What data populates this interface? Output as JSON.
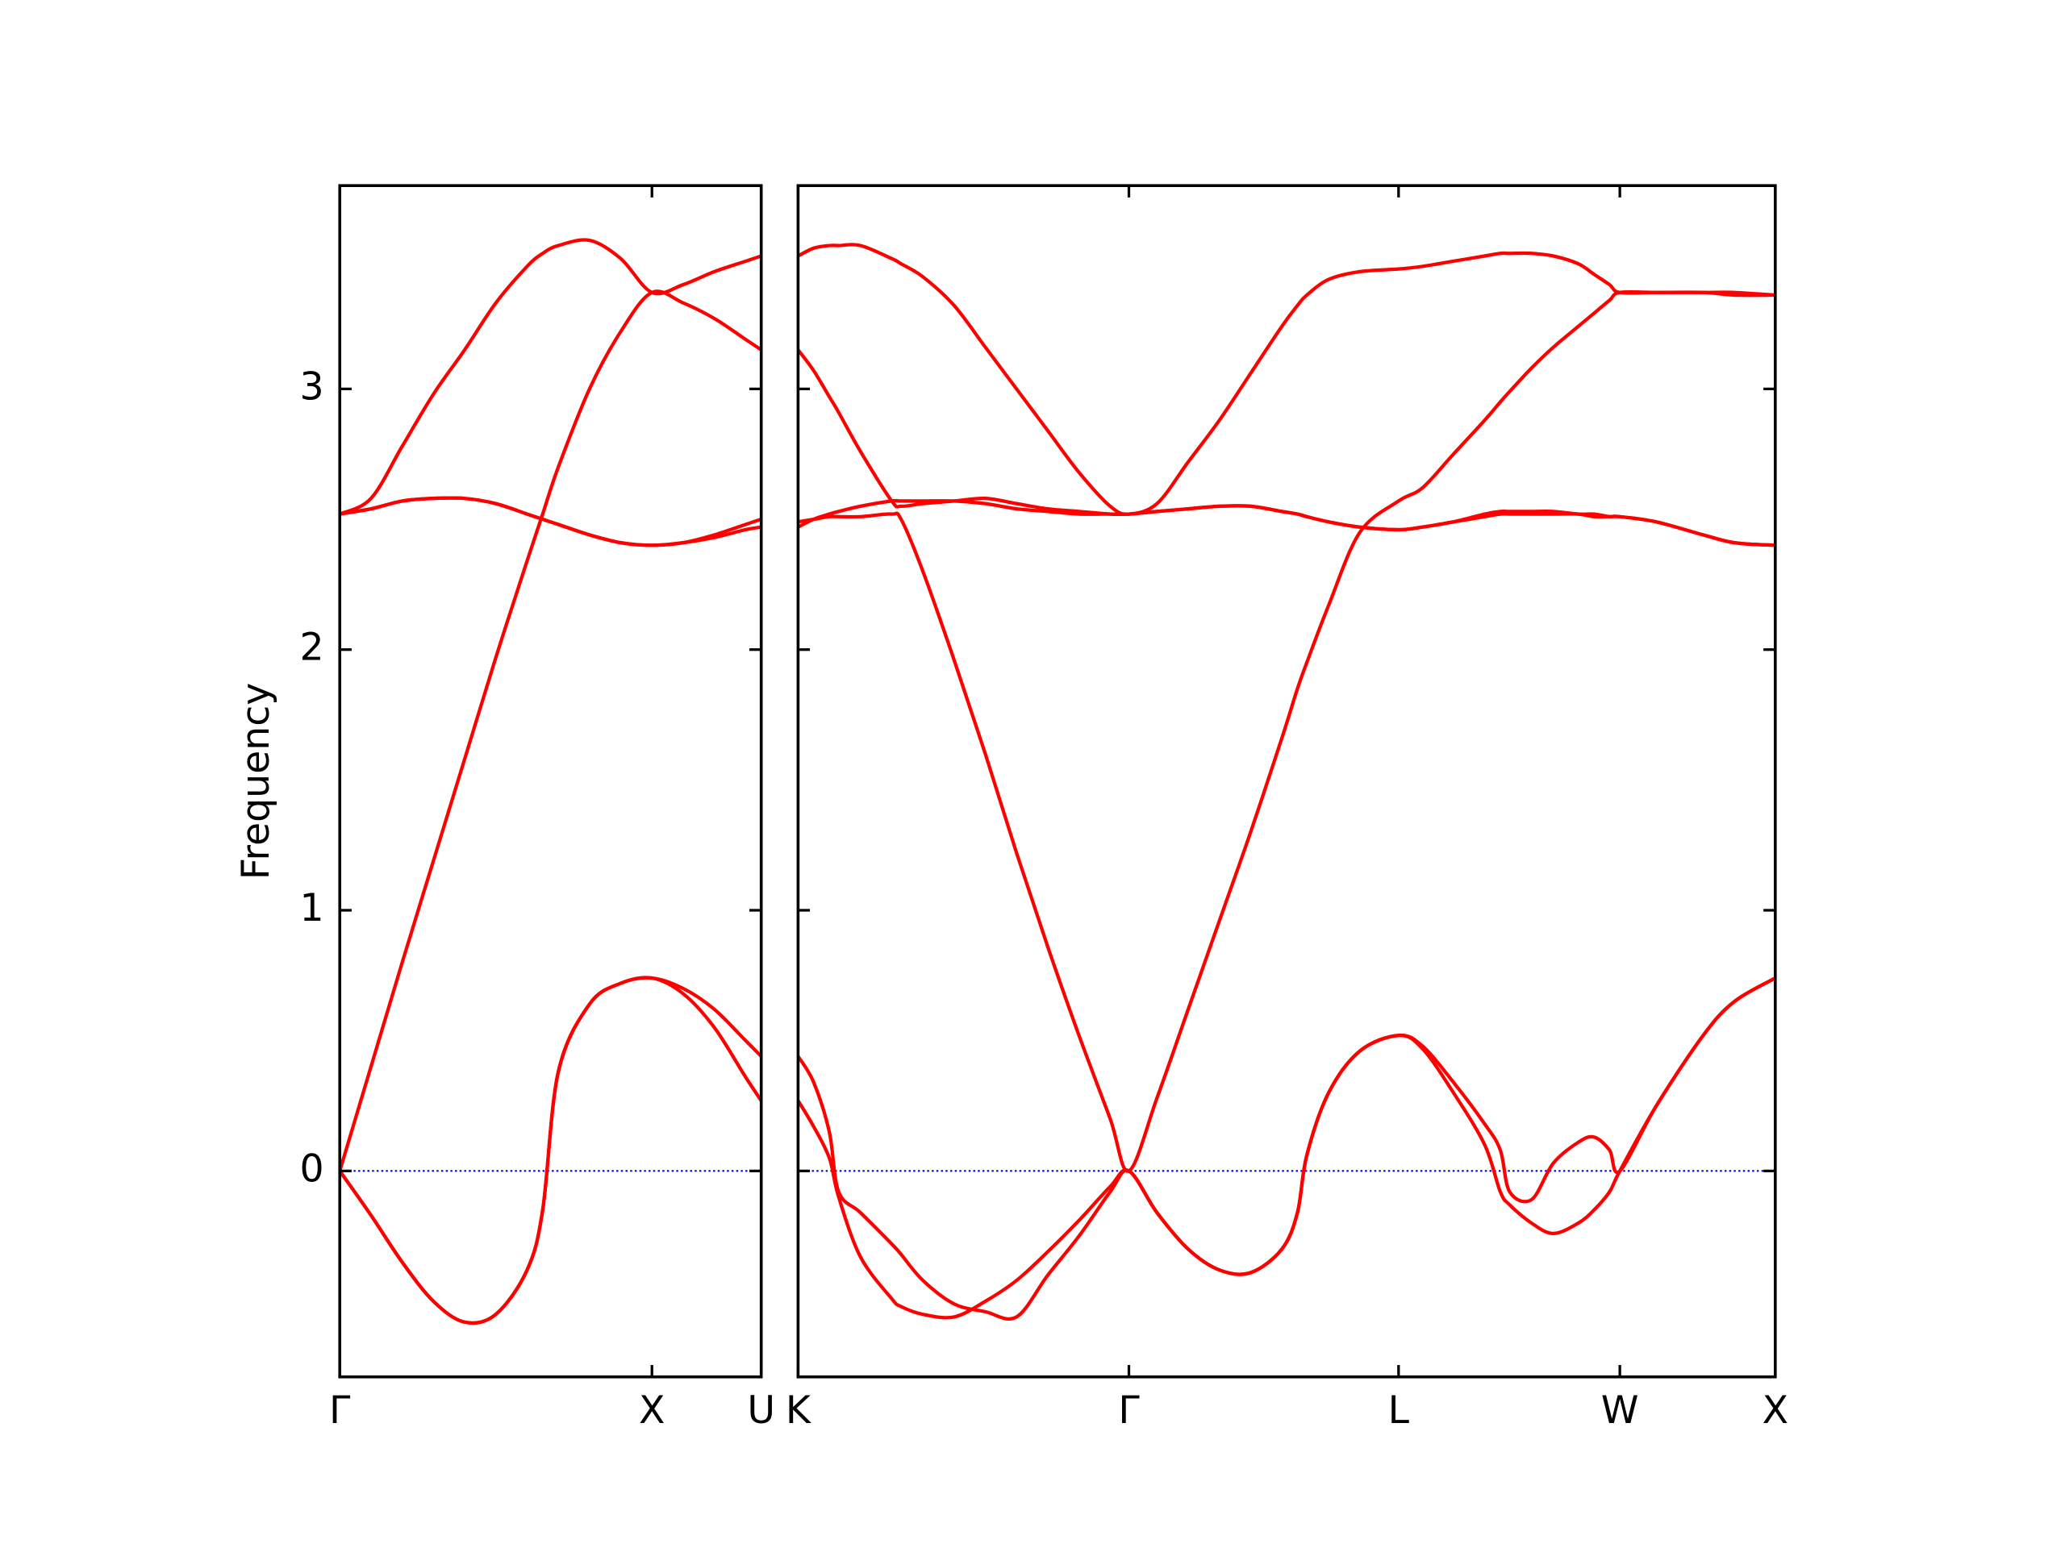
{
  "chart_data": [
    {
      "type": "line",
      "ylabel": "Frequency",
      "x": [
        0,
        0.1,
        0.2,
        0.3,
        0.4,
        0.5,
        0.6,
        0.65,
        0.7,
        0.8,
        0.9,
        1.0,
        1.1,
        1.2,
        1.3,
        1.35
      ],
      "series": [
        {
          "color": "#ff0000",
          "values": [
            0,
            -0.17,
            -0.35,
            -0.5,
            -0.58,
            -0.55,
            -0.38,
            -0.15,
            0.38,
            0.64,
            0.72,
            0.74,
            0.7,
            0.62,
            0.5,
            0.44
          ]
        },
        {
          "color": "#ff0000",
          "values": [
            0,
            -0.17,
            -0.35,
            -0.5,
            -0.58,
            -0.55,
            -0.38,
            -0.15,
            0.38,
            0.64,
            0.72,
            0.74,
            0.68,
            0.55,
            0.36,
            0.27
          ]
        },
        {
          "color": "#ff0000",
          "values": [
            0,
            0.4,
            0.8,
            1.19,
            1.58,
            1.97,
            2.34,
            2.52,
            2.7,
            3.0,
            3.22,
            3.37,
            3.33,
            3.27,
            3.19,
            3.15
          ]
        },
        {
          "color": "#ff0000",
          "values": [
            2.52,
            2.58,
            2.78,
            2.98,
            3.15,
            3.33,
            3.47,
            3.52,
            3.55,
            3.57,
            3.5,
            3.37,
            3.4,
            3.45,
            3.49,
            3.51
          ]
        },
        {
          "color": "#ff0000",
          "values": [
            2.52,
            2.54,
            2.57,
            2.58,
            2.58,
            2.56,
            2.52,
            2.5,
            2.48,
            2.44,
            2.41,
            2.4,
            2.41,
            2.44,
            2.48,
            2.5
          ]
        },
        {
          "color": "#ff0000",
          "values": [
            2.52,
            2.54,
            2.57,
            2.58,
            2.58,
            2.56,
            2.52,
            2.5,
            2.48,
            2.44,
            2.41,
            2.4,
            2.41,
            2.43,
            2.46,
            2.47
          ]
        }
      ],
      "xlim": [
        0,
        1.35
      ],
      "ylim": [
        -0.79,
        3.78
      ],
      "yticks": [
        0,
        1,
        2,
        3
      ],
      "ytick_labels": true,
      "xticks": [
        {
          "value": 0,
          "label": "Γ"
        },
        {
          "value": 1,
          "label": "X"
        },
        {
          "value": 1.35,
          "label": "U"
        }
      ],
      "hline": 0,
      "hline_color": "#0000cc"
    },
    {
      "type": "line",
      "x": [
        0,
        0.05,
        0.1,
        0.13,
        0.2,
        0.3,
        0.33,
        0.4,
        0.5,
        0.6,
        0.7,
        0.8,
        0.9,
        1.0,
        1.06,
        1.15,
        1.25,
        1.35,
        1.45,
        1.55,
        1.6,
        1.63,
        1.7,
        1.8,
        1.924,
        2.0,
        2.1,
        2.2,
        2.25,
        2.28,
        2.35,
        2.42,
        2.5,
        2.55,
        2.6,
        2.633,
        2.75,
        2.9,
        3.0,
        3.131
      ],
      "series": [
        {
          "color": "#ff0000",
          "values": [
            0.44,
            0.34,
            0.15,
            -0.08,
            -0.16,
            -0.28,
            -0.32,
            -0.42,
            -0.51,
            -0.54,
            -0.56,
            -0.4,
            -0.25,
            -0.08,
            0,
            -0.16,
            -0.3,
            -0.38,
            -0.39,
            -0.3,
            -0.16,
            0.06,
            0.3,
            0.46,
            0.52,
            0.48,
            0.34,
            0.18,
            0.08,
            -0.08,
            -0.11,
            0.03,
            0.11,
            0.13,
            0.08,
            0,
            0.25,
            0.52,
            0.65,
            0.74
          ]
        },
        {
          "color": "#ff0000",
          "values": [
            0.27,
            0.17,
            0.05,
            -0.1,
            -0.33,
            -0.49,
            -0.52,
            -0.55,
            -0.56,
            -0.5,
            -0.42,
            -0.31,
            -0.19,
            -0.06,
            0,
            -0.16,
            -0.3,
            -0.38,
            -0.39,
            -0.3,
            -0.16,
            0.06,
            0.3,
            0.46,
            0.52,
            0.47,
            0.3,
            0.1,
            -0.08,
            -0.13,
            -0.2,
            -0.24,
            -0.2,
            -0.15,
            -0.08,
            0,
            0.25,
            0.52,
            0.65,
            0.74
          ]
        },
        {
          "color": "#ff0000",
          "values": [
            2.49,
            2.5,
            2.51,
            2.51,
            2.51,
            2.52,
            2.5,
            2.3,
            1.96,
            1.6,
            1.22,
            0.86,
            0.52,
            0.2,
            0,
            0.28,
            0.62,
            0.96,
            1.3,
            1.66,
            1.85,
            1.95,
            2.17,
            2.45,
            2.57,
            2.62,
            2.75,
            2.88,
            2.95,
            2.99,
            3.08,
            3.16,
            3.24,
            3.29,
            3.34,
            3.37,
            3.37,
            3.37,
            3.36,
            3.36
          ]
        },
        {
          "color": "#ff0000",
          "values": [
            3.15,
            3.07,
            2.97,
            2.91,
            2.76,
            2.57,
            2.55,
            2.56,
            2.57,
            2.58,
            2.56,
            2.54,
            2.53,
            2.52,
            2.52,
            2.53,
            2.54,
            2.55,
            2.55,
            2.53,
            2.52,
            2.51,
            2.49,
            2.47,
            2.46,
            2.47,
            2.49,
            2.51,
            2.52,
            2.52,
            2.52,
            2.52,
            2.52,
            2.51,
            2.51,
            2.51,
            2.49,
            2.44,
            2.41,
            2.4
          ]
        },
        {
          "color": "#ff0000",
          "values": [
            2.47,
            2.5,
            2.52,
            2.53,
            2.55,
            2.57,
            2.57,
            2.57,
            2.57,
            2.56,
            2.54,
            2.53,
            2.52,
            2.52,
            2.52,
            2.53,
            2.54,
            2.55,
            2.55,
            2.53,
            2.52,
            2.51,
            2.49,
            2.47,
            2.46,
            2.47,
            2.49,
            2.52,
            2.53,
            2.53,
            2.53,
            2.53,
            2.52,
            2.52,
            2.51,
            2.51,
            2.49,
            2.44,
            2.41,
            2.4
          ]
        },
        {
          "color": "#ff0000",
          "values": [
            3.51,
            3.54,
            3.55,
            3.55,
            3.55,
            3.5,
            3.48,
            3.43,
            3.32,
            3.16,
            3.0,
            2.84,
            2.68,
            2.55,
            2.52,
            2.56,
            2.72,
            2.88,
            3.06,
            3.24,
            3.32,
            3.36,
            3.42,
            3.45,
            3.46,
            3.47,
            3.49,
            3.51,
            3.52,
            3.52,
            3.52,
            3.51,
            3.48,
            3.44,
            3.4,
            3.37,
            3.37,
            3.37,
            3.37,
            3.36
          ]
        }
      ],
      "xlim": [
        0,
        3.131
      ],
      "ylim": [
        -0.79,
        3.78
      ],
      "yticks": [
        0,
        1,
        2,
        3
      ],
      "ytick_labels": false,
      "xticks": [
        {
          "value": 0,
          "label": "K"
        },
        {
          "value": 1.06,
          "label": "Γ"
        },
        {
          "value": 1.924,
          "label": "L"
        },
        {
          "value": 2.633,
          "label": "W"
        },
        {
          "value": 3.131,
          "label": "X"
        }
      ],
      "hline": 0,
      "hline_color": "#0000cc"
    }
  ]
}
